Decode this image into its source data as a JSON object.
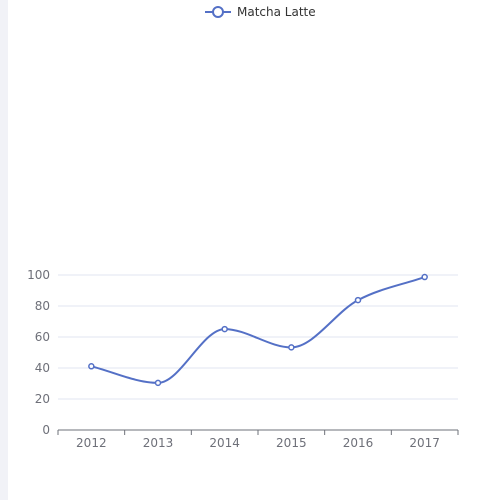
{
  "legend": {
    "series_name": "Matcha Latte",
    "icon": "line-circle-legend-icon"
  },
  "colors": {
    "series": "#5470c6",
    "grid": "#e0e6f1",
    "axis": "#6e7079",
    "left_strip": "#f1f2f7"
  },
  "chart_data": {
    "type": "line",
    "smooth": true,
    "title": "",
    "xlabel": "",
    "ylabel": "",
    "categories": [
      "2012",
      "2013",
      "2014",
      "2015",
      "2016",
      "2017"
    ],
    "series": [
      {
        "name": "Matcha Latte",
        "values": [
          41.1,
          30.4,
          65.1,
          53.3,
          83.8,
          98.7
        ]
      }
    ],
    "y_ticks": [
      0,
      20,
      40,
      60,
      80,
      100
    ],
    "ylim": [
      0,
      100
    ],
    "grid": true,
    "legend_position": "top-center"
  }
}
